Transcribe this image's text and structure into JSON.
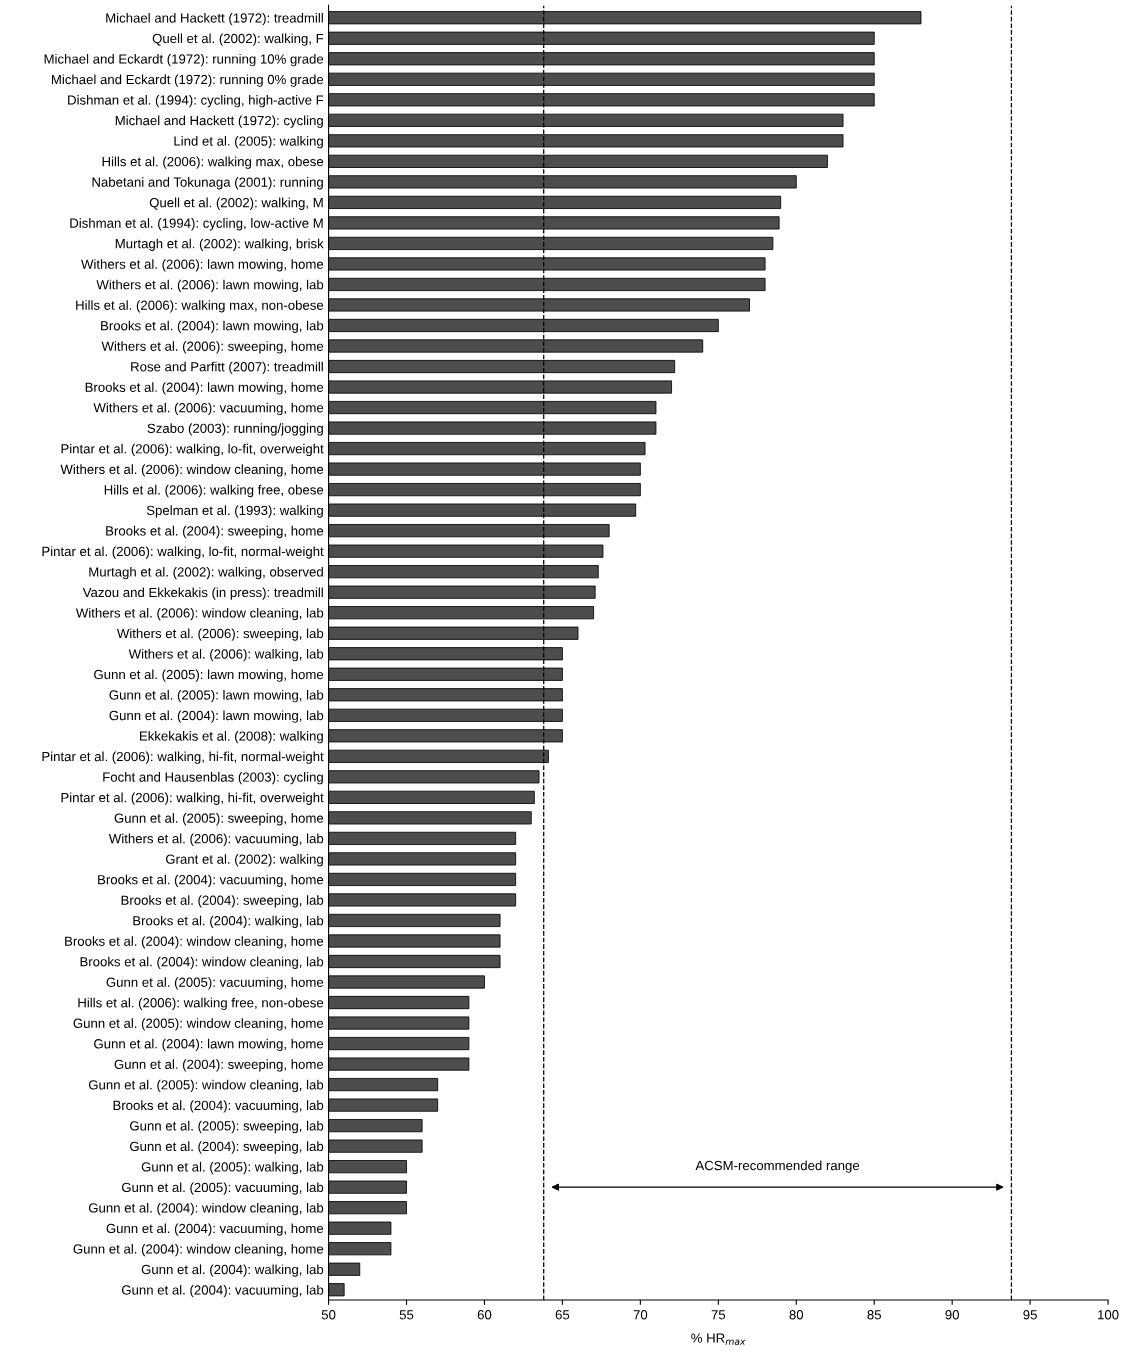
{
  "chart_data": {
    "type": "bar",
    "orientation": "horizontal",
    "xlabel": "% HR$_{max}$",
    "categories": [
      "Michael and Hackett (1972): treadmill",
      "Quell et al. (2002): walking, F",
      "Michael and Eckardt (1972): running 10% grade",
      "Michael and Eckardt (1972): running 0% grade",
      "Dishman et al. (1994): cycling, high-active F",
      "Michael and Hackett (1972): cycling",
      "Lind et al. (2005): walking",
      "Hills et al. (2006): walking max, obese",
      "Nabetani and Tokunaga (2001): running",
      "Quell et al. (2002): walking, M",
      "Dishman et al. (1994): cycling, low-active M",
      "Murtagh et al. (2002): walking, brisk",
      "Withers et al. (2006): lawn mowing, home",
      "Withers et al. (2006): lawn mowing, lab",
      "Hills et al. (2006): walking max, non-obese",
      "Brooks et al. (2004): lawn mowing, lab",
      "Withers et al. (2006): sweeping, home",
      "Rose and Parfitt (2007): treadmill",
      "Brooks et al. (2004): lawn mowing, home",
      "Withers et al. (2006): vacuuming, home",
      "Szabo (2003): running/jogging",
      "Pintar et al. (2006): walking, lo-fit, overweight",
      "Withers et al. (2006): window cleaning, home",
      "Hills et al. (2006): walking free, obese",
      "Spelman et al. (1993): walking",
      "Brooks et al. (2004): sweeping, home",
      "Pintar et al. (2006): walking, lo-fit, normal-weight",
      "Murtagh et al. (2002): walking, observed",
      "Vazou and Ekkekakis (in press): treadmill",
      "Withers et al. (2006): window cleaning, lab",
      "Withers et al. (2006): sweeping, lab",
      "Withers et al. (2006): walking, lab",
      "Gunn et al. (2005): lawn mowing, home",
      "Gunn et al. (2005): lawn mowing, lab",
      "Gunn et al. (2004): lawn mowing, lab",
      "Ekkekakis et al. (2008): walking",
      "Pintar et al. (2006): walking, hi-fit, normal-weight",
      "Focht and Hausenblas (2003): cycling",
      "Pintar et al. (2006): walking, hi-fit, overweight",
      "Gunn et al. (2005): sweeping, home",
      "Withers et al. (2006): vacuuming, lab",
      "Grant et al. (2002): walking",
      "Brooks et al. (2004): vacuuming, home",
      "Brooks et al. (2004): sweeping, lab",
      "Brooks et al. (2004): walking, lab",
      "Brooks et al. (2004): window cleaning, home",
      "Brooks et al. (2004): window cleaning, lab",
      "Gunn et al. (2005): vacuuming, home",
      "Hills et al. (2006): walking free, non-obese",
      "Gunn et al. (2005): window cleaning, home",
      "Gunn et al. (2004): lawn mowing, home",
      "Gunn et al. (2004): sweeping, home",
      "Gunn et al. (2005): window cleaning, lab",
      "Brooks et al. (2004): vacuuming, lab",
      "Gunn et al. (2005): sweeping, lab",
      "Gunn et al. (2004): sweeping, lab",
      "Gunn et al. (2005): walking, lab",
      "Gunn et al. (2005): vacuuming, lab",
      "Gunn et al. (2004): window cleaning, lab",
      "Gunn et al. (2004): vacuuming, home",
      "Gunn et al. (2004): window cleaning, home",
      "Gunn et al. (2004): walking, lab",
      "Gunn et al. (2004): vacuuming, lab"
    ],
    "values": [
      88,
      85,
      85,
      85,
      85,
      83,
      83,
      82,
      80,
      79,
      78.9,
      78.5,
      78,
      78,
      77,
      75,
      74,
      72.2,
      72,
      71,
      71,
      70.3,
      70,
      70,
      69.7,
      68,
      67.6,
      67.3,
      67.1,
      67,
      66,
      65,
      65,
      65,
      65,
      65,
      64.1,
      63.5,
      63.2,
      63,
      62,
      62,
      62,
      62,
      61,
      61,
      61,
      60,
      59,
      59,
      59,
      59,
      57,
      57,
      56,
      56,
      55,
      55,
      55,
      54,
      54,
      52,
      51
    ],
    "color": "#4d4d4d",
    "xlim": [
      50,
      100
    ],
    "xticks": [
      50,
      55,
      60,
      65,
      70,
      75,
      80,
      85,
      90,
      95,
      100
    ],
    "ref_lines": [
      {
        "axis": "x",
        "value": 63.8,
        "line_style": "dashed",
        "color": "#000000"
      },
      {
        "axis": "x",
        "value": 93.8,
        "line_style": "dashed",
        "color": "#000000"
      }
    ],
    "annotations": [
      "ACSM-recommended range"
    ],
    "grid": false,
    "legend": false
  }
}
